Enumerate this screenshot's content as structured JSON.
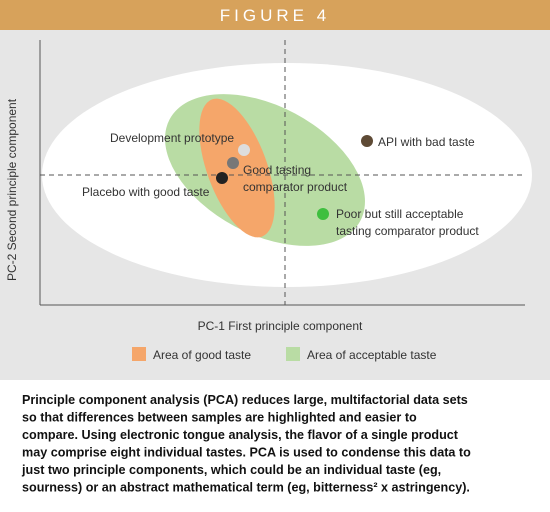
{
  "header": {
    "title": "FIGURE 4"
  },
  "axes": {
    "x_label": "PC-1 First principle component",
    "y_label": "PC-2 Second principle component"
  },
  "points": [
    {
      "label": [
        "Development prototype"
      ]
    },
    {
      "label": [
        "Good tasting",
        "comparator product"
      ]
    },
    {
      "label": [
        "Placebo with good taste"
      ]
    },
    {
      "label": [
        "API with bad taste"
      ]
    },
    {
      "label": [
        "Poor but still acceptable",
        "tasting comparator product"
      ]
    }
  ],
  "legend": [
    "Area of good taste",
    "Area of acceptable taste"
  ],
  "caption": [
    "Principle component analysis (PCA) reduces large, multifactorial data sets",
    "so that differences between samples are highlighted and easier to",
    "compare. Using electronic tongue analysis, the flavor of a single product",
    "may comprise eight individual tastes. PCA is used to condense this data to",
    "just two principle components, which could be an individual taste (eg,",
    "sourness) or an abstract mathematical term (eg, bitterness² x astringency)."
  ]
}
